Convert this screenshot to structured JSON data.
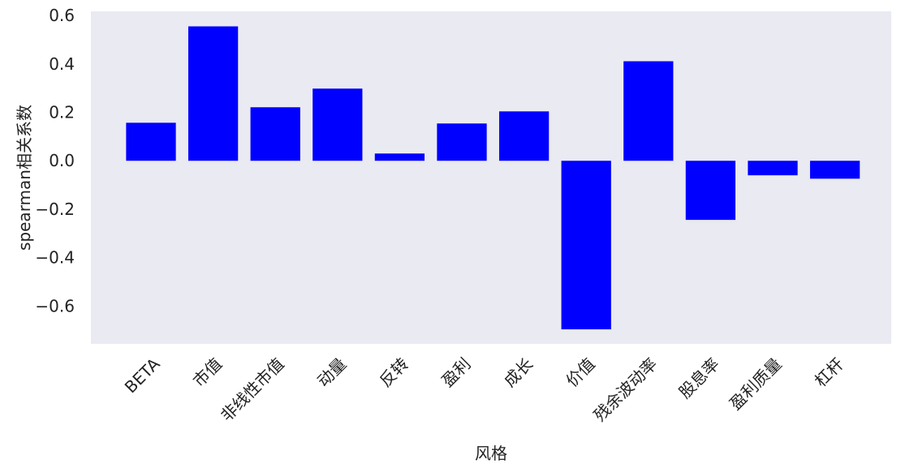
{
  "chart_data": {
    "type": "bar",
    "xlabel": "风格",
    "ylabel": "spearman相关系数",
    "categories": [
      "BETA",
      "市值",
      "非线性市值",
      "动量",
      "反转",
      "盈利",
      "成长",
      "价值",
      "残余波动率",
      "股息率",
      "盈利质量",
      "杠杆"
    ],
    "values": [
      0.157,
      0.555,
      0.221,
      0.298,
      0.03,
      0.154,
      0.204,
      -0.696,
      0.411,
      -0.244,
      -0.06,
      -0.074
    ],
    "color": "#0000ff",
    "background": "#eaeaf2",
    "ylim": [
      -0.756,
      0.617
    ],
    "yticks": [
      0.6,
      0.4,
      0.2,
      {
        "value": 0,
        "label": "0.0"
      },
      {
        "value": -0.2,
        "label": "−0.2"
      },
      {
        "value": -0.4,
        "label": "−0.4"
      },
      {
        "value": -0.6,
        "label": "−0.6"
      }
    ],
    "grid": false
  }
}
